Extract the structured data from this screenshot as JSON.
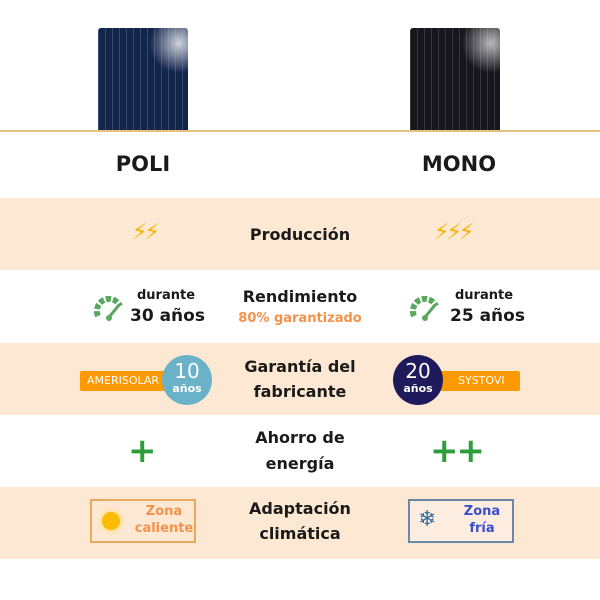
{
  "columns": {
    "left": "POLI",
    "right": "MONO"
  },
  "rows": [
    {
      "label": "Producción",
      "left_bolts": 2,
      "right_bolts": 3
    },
    {
      "label": "Rendimiento",
      "sublabel": "80% garantizado",
      "left": {
        "prefix": "durante",
        "value": "30 años"
      },
      "right": {
        "prefix": "durante",
        "value": "25 años"
      }
    },
    {
      "label_line1": "Garantía del",
      "label_line2": "fabricante",
      "left": {
        "brand": "AMERISOLAR",
        "years": "10",
        "unit": "años"
      },
      "right": {
        "brand": "SYSTOVI",
        "years": "20",
        "unit": "años"
      }
    },
    {
      "label_line1": "Ahorro de",
      "label_line2": "energía",
      "left": "+",
      "right": "++"
    },
    {
      "label_line1": "Adaptación",
      "label_line2": "climática",
      "left": {
        "line1": "Zona",
        "line2": "caliente",
        "icon": "sun-icon"
      },
      "right": {
        "line1": "Zona",
        "line2": "fría",
        "icon": "snowflake-icon"
      }
    }
  ],
  "bolt_glyph": "⚡",
  "colors": {
    "peach": "#fde8d3",
    "orange": "#ff9900",
    "green": "#2e9e3a",
    "accent_text": "#f4924a",
    "teal": "#6ab2c8",
    "navy": "#1f1a5c",
    "cold_text": "#3a4fd0"
  }
}
